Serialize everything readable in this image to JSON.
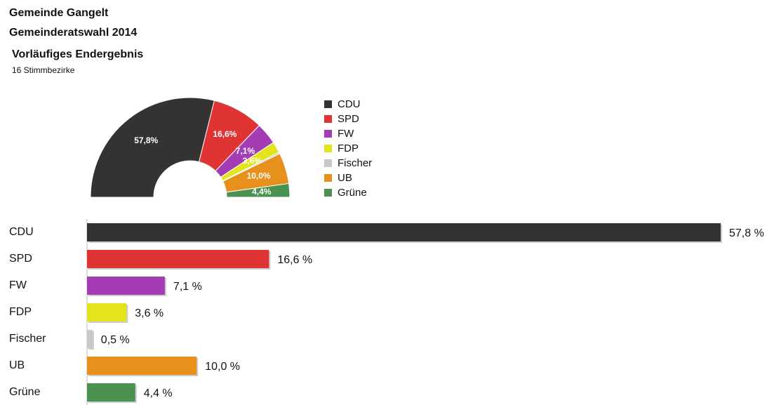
{
  "header": {
    "title": "Gemeinde Gangelt",
    "subtitle": "Gemeinderatswahl 2014"
  },
  "chart_data": [
    {
      "type": "donut",
      "title": "Vorläufiges Endergebnis",
      "subtitle": "16 Stimmbezirke",
      "categories": [
        "CDU",
        "SPD",
        "FW",
        "FDP",
        "Fischer",
        "UB",
        "Grüne"
      ],
      "values": [
        57.8,
        16.6,
        7.1,
        3.6,
        0.5,
        10.0,
        4.4
      ],
      "value_labels": [
        "57,8%",
        "16,6%",
        "7,1%",
        "3,6%",
        null,
        "10,0%",
        "4,4%"
      ],
      "colors": [
        "#333333",
        "#e03333",
        "#a43db4",
        "#e4e41c",
        "#c8c8c8",
        "#e8901c",
        "#4b9150"
      ],
      "legend": "right"
    },
    {
      "type": "hbar",
      "categories": [
        "CDU",
        "SPD",
        "FW",
        "FDP",
        "Fischer",
        "UB",
        "Grüne"
      ],
      "values": [
        57.8,
        16.6,
        7.1,
        3.6,
        0.5,
        10.0,
        4.4
      ],
      "value_labels": [
        "57,8 %",
        "16,6 %",
        "7,1 %",
        "3,6 %",
        "0,5 %",
        "10,0 %",
        "4,4 %"
      ],
      "colors": [
        "#333333",
        "#e03333",
        "#a43db4",
        "#e4e41c",
        "#c8c8c8",
        "#e8901c",
        "#4b9150"
      ]
    }
  ]
}
